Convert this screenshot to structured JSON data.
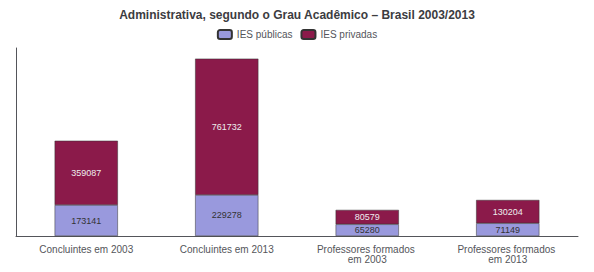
{
  "chart_data": {
    "type": "bar",
    "title": "Administrativa, segundo o Grau Acadêmico – Brasil 2003/2013",
    "categories": [
      "Concluintes em 2003",
      "Concluintes em 2013",
      "Professores formados em 2003",
      "Professores formados em 2013"
    ],
    "series": [
      {
        "name": "IES públicas",
        "color": "#9999DD",
        "values": [
          173141,
          229278,
          65280,
          71149
        ]
      },
      {
        "name": "IES privadas",
        "color": "#8B1A4A",
        "values": [
          359087,
          761732,
          80579,
          130204
        ]
      }
    ],
    "stacked": true,
    "ylim": [
      0,
      1050470.6
    ],
    "grid": false,
    "legend": "top",
    "tick_labels": "x",
    "data_labels": true
  }
}
